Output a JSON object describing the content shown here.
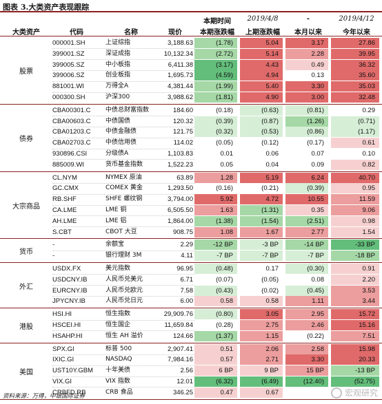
{
  "title": "图表 3.大类资产表现跟踪",
  "headers": {
    "cat": "大类资产",
    "code": "代码",
    "name": "名称",
    "price": "现价",
    "c1_top": "本期时间",
    "c1_bot": "本期涨跌幅",
    "c2_top": "2019/4/8",
    "c2_bot": "上期涨跌幅",
    "c3_top": "-",
    "c3_bot": "本月以来",
    "c4_top": "2019/4/12",
    "c4_bot": "今年以来"
  },
  "groups": [
    {
      "label": "股票",
      "rows": [
        {
          "code": "000001.SH",
          "name": "上证综指",
          "price": "3,188.63",
          "c1": "(1.78)",
          "c2": "5.04",
          "c3": "3.17",
          "c4": "27.86"
        },
        {
          "code": "399001.SZ",
          "name": "深证成指",
          "price": "10,132.34",
          "c1": "(2.72)",
          "c2": "5.14",
          "c3": "2.28",
          "c4": "39.95"
        },
        {
          "code": "399005.SZ",
          "name": "中小板指",
          "price": "6,411.38",
          "c1": "(3.17)",
          "c2": "4.43",
          "c3": "0.49",
          "c4": "36.32"
        },
        {
          "code": "399006.SZ",
          "name": "创业板指",
          "price": "1,695.73",
          "c1": "(4.59)",
          "c2": "4.94",
          "c3": "0.13",
          "c4": "35.60"
        },
        {
          "code": "881001.WI",
          "name": "万得全A",
          "price": "4,381.44",
          "c1": "(1.99)",
          "c2": "5.40",
          "c3": "3.30",
          "c4": "35.03"
        },
        {
          "code": "000300.SH",
          "name": "沪深300",
          "price": "3,988.62",
          "c1": "(1.81)",
          "c2": "4.90",
          "c3": "3.00",
          "c4": "32.48"
        }
      ]
    },
    {
      "label": "债券",
      "rows": [
        {
          "code": "CBA00301.C",
          "name": "中债总财富指数",
          "price": "184.60",
          "c1": "(0.18)",
          "c2": "(0.63)",
          "c3": "(0.81)",
          "c4": "0.29"
        },
        {
          "code": "CBA00603.C",
          "name": "中债国债",
          "price": "120.32",
          "c1": "(0.39)",
          "c2": "(0.87)",
          "c3": "(1.26)",
          "c4": "(0.71)"
        },
        {
          "code": "CBA01203.C",
          "name": "中债金融债",
          "price": "121.75",
          "c1": "(0.32)",
          "c2": "(0.53)",
          "c3": "(0.86)",
          "c4": "(1.17)"
        },
        {
          "code": "CBA02703.C",
          "name": "中债信用债",
          "price": "114.02",
          "c1": "(0.05)",
          "c2": "(0.12)",
          "c3": "(0.17)",
          "c4": "0.61"
        },
        {
          "code": "930896.CSI",
          "name": "分级债A",
          "price": "1,103.83",
          "c1": "0.01",
          "c2": "0.06",
          "c3": "0.07",
          "c4": "0.10"
        },
        {
          "code": "885009.WI",
          "name": "货币基金指数",
          "price": "1,522.23",
          "c1": "0.05",
          "c2": "0.04",
          "c3": "0.09",
          "c4": "0.82"
        }
      ]
    },
    {
      "label": "大宗商品",
      "rows": [
        {
          "code": "CL.NYM",
          "name": "NYMEX 原油",
          "price": "63.89",
          "c1": "1.28",
          "c2": "5.19",
          "c3": "6.24",
          "c4": "40.70"
        },
        {
          "code": "GC.CMX",
          "name": "COMEX 黄金",
          "price": "1,293.50",
          "c1": "(0.16)",
          "c2": "(0.21)",
          "c3": "(0.39)",
          "c4": "0.95"
        },
        {
          "code": "RB.SHF",
          "name": "SHFE 螺纹钢",
          "price": "3,794.00",
          "c1": "5.92",
          "c2": "4.72",
          "c3": "10.55",
          "c4": "11.59"
        },
        {
          "code": "CA.LME",
          "name": "LME 铜",
          "price": "6,505.50",
          "c1": "1.63",
          "c2": "(1.31)",
          "c3": "0.35",
          "c4": "9.06"
        },
        {
          "code": "AH.LME",
          "name": "LME 铝",
          "price": "1,864.00",
          "c1": "(1.38)",
          "c2": "(1.54)",
          "c3": "(2.51)",
          "c4": "0.98"
        },
        {
          "code": "S.CBT",
          "name": "CBOT 大豆",
          "price": "908.75",
          "c1": "1.08",
          "c2": "1.67",
          "c3": "2.77",
          "c4": "1.54"
        }
      ]
    },
    {
      "label": "货币",
      "rows": [
        {
          "code": "-",
          "name": "余额宝",
          "price": "2.29",
          "c1": "-12 BP",
          "c2": "-3 BP",
          "c3": "-14 BP",
          "c4": "-33 BP"
        },
        {
          "code": "-",
          "name": "银行理财 3M",
          "price": "4.11",
          "c1": "-7 BP",
          "c2": "-7 BP",
          "c3": "-7 BP",
          "c4": "-18 BP"
        }
      ]
    },
    {
      "label": "外汇",
      "rows": [
        {
          "code": "USDX.FX",
          "name": "美元指数",
          "price": "96.95",
          "c1": "(0.48)",
          "c2": "0.17",
          "c3": "(0.30)",
          "c4": "0.91"
        },
        {
          "code": "USDCNY.IB",
          "name": "人民币兑美元",
          "price": "6.71",
          "c1": "(0.07)",
          "c2": "(0.05)",
          "c3": "0.08",
          "c4": "2.20"
        },
        {
          "code": "EURCNY.IB",
          "name": "人民币兑欧元",
          "price": "7.58",
          "c1": "(0.43)",
          "c2": "(0.02)",
          "c3": "(0.45)",
          "c4": "3.53"
        },
        {
          "code": "JPYCNY.IB",
          "name": "人民币兑日元",
          "price": "6.00",
          "c1": "0.58",
          "c2": "0.58",
          "c3": "1.11",
          "c4": "3.44"
        }
      ]
    },
    {
      "label": "港股",
      "rows": [
        {
          "code": "HSI.HI",
          "name": "恒生指数",
          "price": "29,909.76",
          "c1": "(0.80)",
          "c2": "3.05",
          "c3": "2.95",
          "c4": "15.72"
        },
        {
          "code": "HSCEI.HI",
          "name": "恒生国企",
          "price": "11,659.84",
          "c1": "(0.28)",
          "c2": "2.75",
          "c3": "2.46",
          "c4": "15.16"
        },
        {
          "code": "HSAHP.HI",
          "name": "恒生 AH 溢价",
          "price": "124.66",
          "c1": "(1.37)",
          "c2": "1.15",
          "c3": "(0.22)",
          "c4": "7.51"
        }
      ]
    },
    {
      "label": "美国",
      "rows": [
        {
          "code": "SPX.GI",
          "name": "标普 500",
          "price": "2,907.41",
          "c1": "0.51",
          "c2": "2.06",
          "c3": "2.58",
          "c4": "15.98"
        },
        {
          "code": "IXIC.GI",
          "name": "NASDAQ",
          "price": "7,984.16",
          "c1": "0.57",
          "c2": "2.71",
          "c3": "3.30",
          "c4": "20.33"
        },
        {
          "code": "UST10Y.GBM",
          "name": "十年美债",
          "price": "2.56",
          "c1": "6 BP",
          "c2": "9 BP",
          "c3": "15 BP",
          "c4": "-13 BP"
        },
        {
          "code": "VIX.GI",
          "name": "VIX 指数",
          "price": "12.01",
          "c1": "(6.32)",
          "c2": "(6.49)",
          "c3": "(12.40)",
          "c4": "(52.75)"
        },
        {
          "code": "CRBFD.RB",
          "name": "CRB 食品",
          "price": "346.25",
          "c1": "0.47",
          "c2": "0.67",
          "c3": "",
          "c4": ""
        }
      ]
    }
  ],
  "colors": {
    "rule": "#8a1f1f",
    "red_strong": "#e06a6a",
    "red_mid": "#ec9d9d",
    "red_light": "#f6d0d0",
    "green_strong": "#63be7b",
    "green_mid": "#a5d8a6",
    "green_light": "#d6eed6"
  },
  "source": "资料来源：万得，中银国际证券",
  "watermark": "宏观研究"
}
